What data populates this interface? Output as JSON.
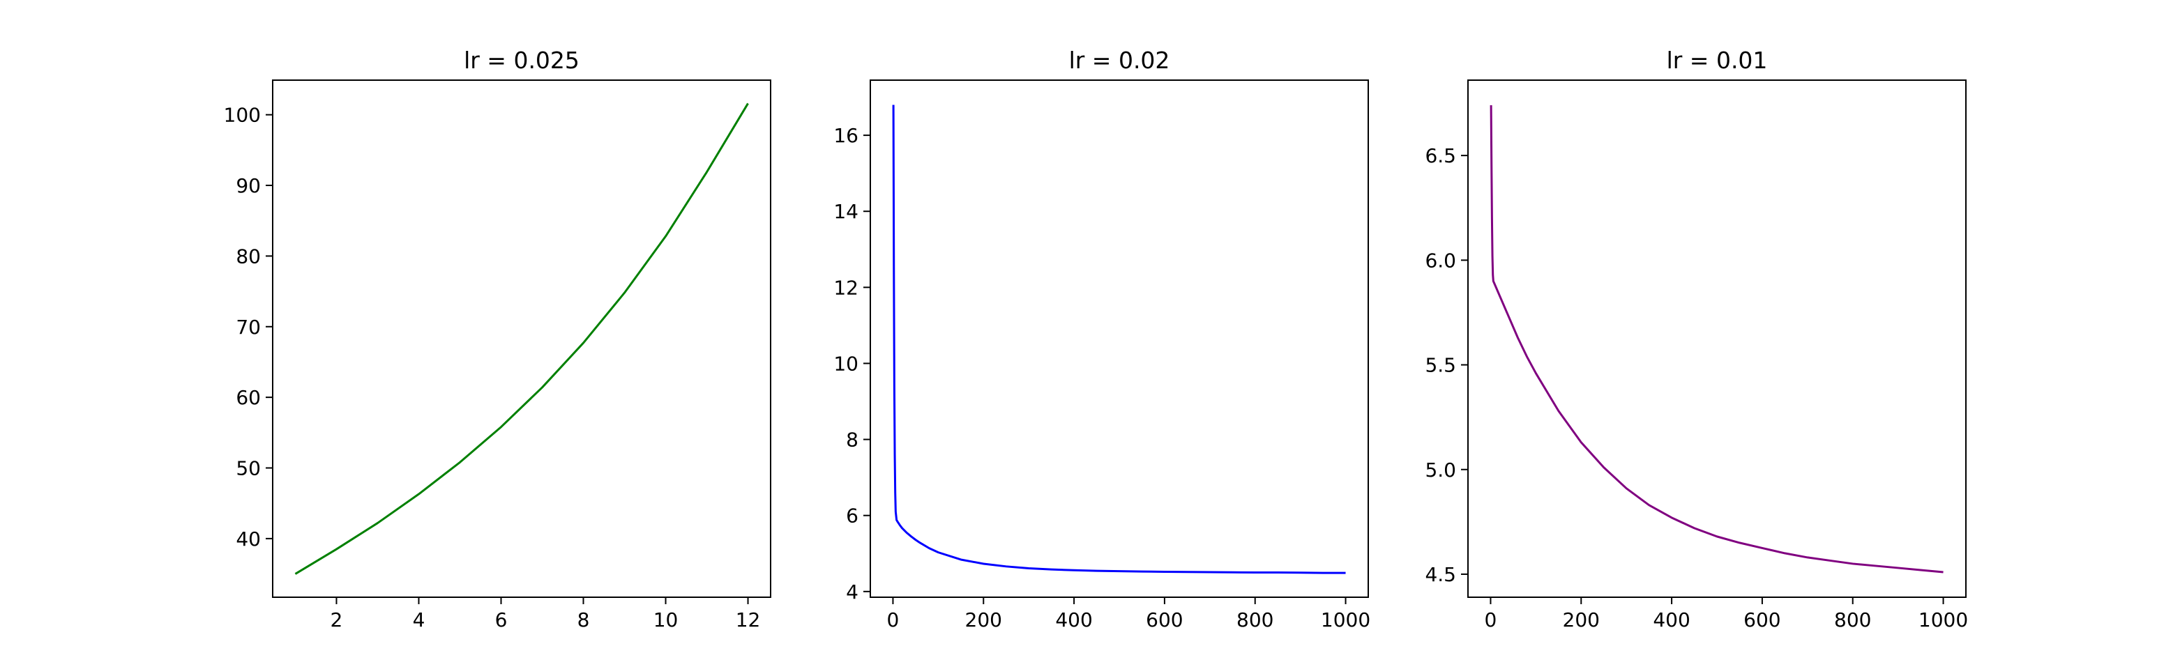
{
  "chart_data": [
    {
      "type": "line",
      "title": "lr = 0.025",
      "xlabel": "",
      "ylabel": "",
      "color": "#008000",
      "grid": false,
      "xlim": [
        0.45,
        12.55
      ],
      "ylim": [
        31.7,
        104.9
      ],
      "xticks": [
        2,
        4,
        6,
        8,
        10,
        12
      ],
      "xtick_labels": [
        "2",
        "4",
        "6",
        "8",
        "10",
        "12"
      ],
      "yticks": [
        40,
        50,
        60,
        70,
        80,
        90,
        100
      ],
      "ytick_labels": [
        "40",
        "50",
        "60",
        "70",
        "80",
        "90",
        "100"
      ],
      "series": [
        {
          "x": [
            1,
            2,
            3,
            4,
            5,
            6,
            7,
            8,
            9,
            10,
            11,
            12
          ],
          "y": [
            35.0,
            38.5,
            42.2,
            46.3,
            50.8,
            55.8,
            61.4,
            67.7,
            74.8,
            82.8,
            91.9,
            101.6
          ]
        }
      ]
    },
    {
      "type": "line",
      "title": "lr = 0.02",
      "xlabel": "",
      "ylabel": "",
      "color": "#0000ff",
      "grid": false,
      "xlim": [
        -50,
        1050
      ],
      "ylim": [
        3.85,
        17.45
      ],
      "xticks": [
        0,
        200,
        400,
        600,
        800,
        1000
      ],
      "xtick_labels": [
        "0",
        "200",
        "400",
        "600",
        "800",
        "1000"
      ],
      "yticks": [
        4,
        6,
        8,
        10,
        12,
        14,
        16
      ],
      "ytick_labels": [
        "4",
        "6",
        "8",
        "10",
        "12",
        "14",
        "16"
      ],
      "series": [
        {
          "x": [
            1,
            2,
            3,
            4,
            5,
            6,
            8,
            10,
            15,
            20,
            30,
            40,
            50,
            60,
            80,
            100,
            150,
            200,
            250,
            300,
            350,
            400,
            450,
            500,
            550,
            600,
            650,
            700,
            750,
            800,
            850,
            900,
            950,
            1000
          ],
          "y": [
            16.8,
            12.5,
            9.4,
            7.6,
            6.6,
            6.1,
            5.88,
            5.84,
            5.75,
            5.67,
            5.55,
            5.45,
            5.36,
            5.28,
            5.14,
            5.03,
            4.84,
            4.73,
            4.66,
            4.61,
            4.58,
            4.56,
            4.545,
            4.535,
            4.525,
            4.52,
            4.515,
            4.51,
            4.505,
            4.5,
            4.5,
            4.495,
            4.49,
            4.49
          ]
        }
      ]
    },
    {
      "type": "line",
      "title": "lr = 0.01",
      "xlabel": "",
      "ylabel": "",
      "color": "#800080",
      "grid": false,
      "xlim": [
        -50,
        1050
      ],
      "ylim": [
        4.39,
        6.86
      ],
      "xticks": [
        0,
        200,
        400,
        600,
        800,
        1000
      ],
      "xtick_labels": [
        "0",
        "200",
        "400",
        "600",
        "800",
        "1000"
      ],
      "yticks": [
        4.5,
        5.0,
        5.5,
        6.0,
        6.5
      ],
      "ytick_labels": [
        "4.5",
        "5.0",
        "5.5",
        "6.0",
        "6.5"
      ],
      "series": [
        {
          "x": [
            1,
            2,
            3,
            4,
            5,
            6,
            8,
            10,
            20,
            40,
            60,
            80,
            100,
            150,
            200,
            250,
            300,
            350,
            400,
            450,
            500,
            550,
            600,
            650,
            700,
            750,
            800,
            850,
            900,
            950,
            1000
          ],
          "y": [
            6.74,
            6.45,
            6.2,
            6.02,
            5.93,
            5.9,
            5.89,
            5.88,
            5.83,
            5.73,
            5.63,
            5.54,
            5.46,
            5.28,
            5.13,
            5.01,
            4.91,
            4.83,
            4.77,
            4.72,
            4.68,
            4.65,
            4.625,
            4.6,
            4.58,
            4.565,
            4.55,
            4.54,
            4.53,
            4.52,
            4.51
          ]
        }
      ]
    }
  ]
}
